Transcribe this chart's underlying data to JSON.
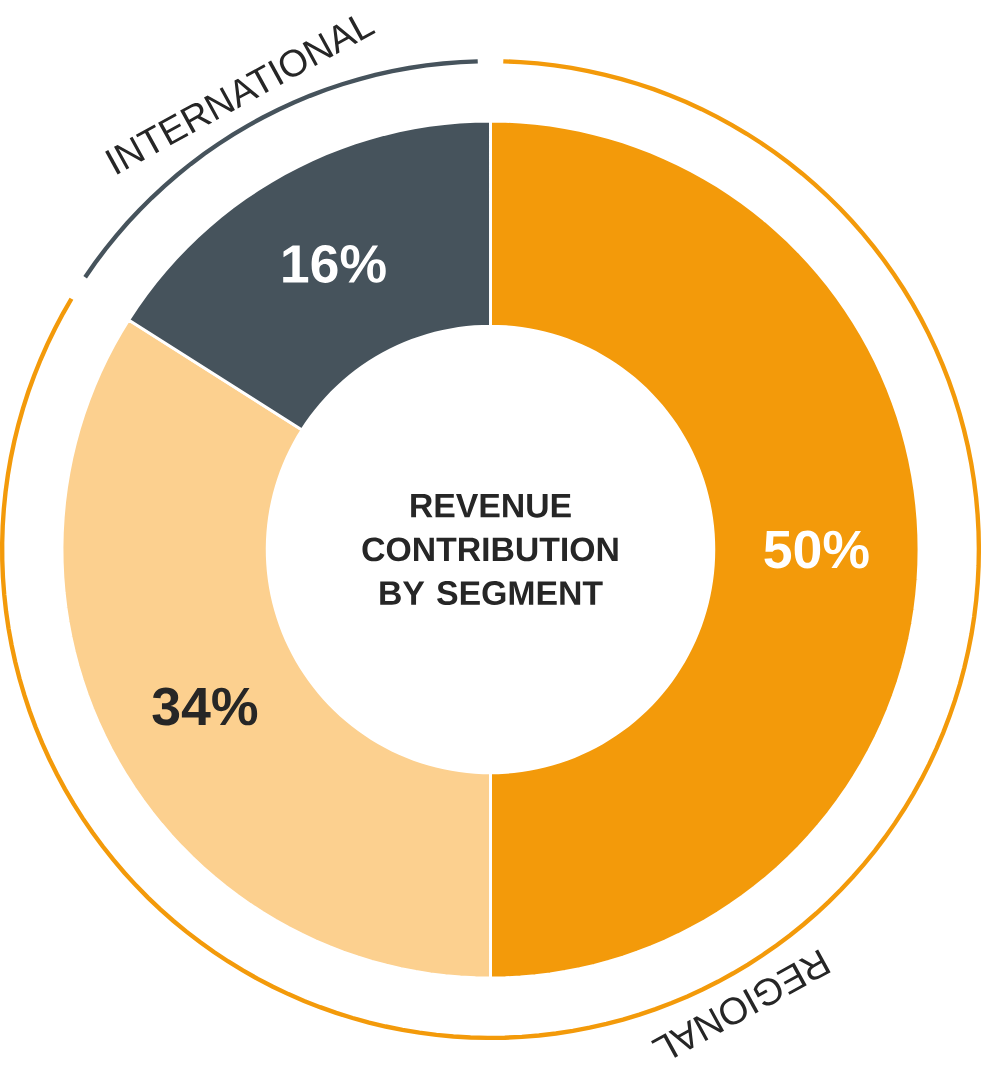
{
  "chart_data": {
    "type": "donut",
    "title": "REVENUE CONTRIBUTION BY SEGMENT",
    "categories": [
      "REGIONAL",
      null,
      "INTERNATIONAL"
    ],
    "values": [
      50,
      34,
      16
    ],
    "colors": [
      "#f39a0a",
      "#fcd08f",
      "#46535c"
    ],
    "value_labels": [
      "50%",
      "34%",
      "16%"
    ]
  }
}
